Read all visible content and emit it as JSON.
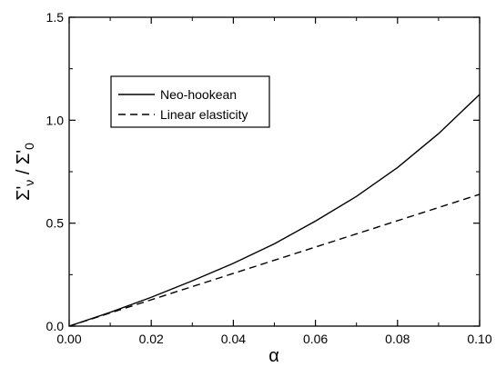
{
  "chart_data": {
    "type": "line",
    "xlabel": "α",
    "ylabel_main": "Σ'",
    "ylabel_sub1": "ν",
    "ylabel_sep": " / ",
    "ylabel_main2": "Σ'",
    "ylabel_sub2": "0",
    "xlim": [
      0,
      0.1
    ],
    "ylim": [
      0,
      1.5
    ],
    "x_ticks": [
      0,
      0.02,
      0.04,
      0.06,
      0.08,
      0.1
    ],
    "x_tick_labels": [
      "0.00",
      "0.02",
      "0.04",
      "0.06",
      "0.08",
      "0.10"
    ],
    "y_ticks": [
      0,
      0.5,
      1.0,
      1.5
    ],
    "y_tick_labels": [
      "0.0",
      "0.5",
      "1.0",
      "1.5"
    ],
    "grid": false,
    "legend_position": "top-left",
    "series": [
      {
        "name": "Neo-hookean",
        "style": "solid",
        "x": [
          0,
          0.01,
          0.02,
          0.03,
          0.04,
          0.05,
          0.06,
          0.07,
          0.08,
          0.09,
          0.1
        ],
        "y": [
          0,
          0.067,
          0.14,
          0.22,
          0.305,
          0.4,
          0.51,
          0.63,
          0.77,
          0.935,
          1.125
        ]
      },
      {
        "name": "Linear elasticity",
        "style": "dashed",
        "x": [
          0,
          0.01,
          0.02,
          0.03,
          0.04,
          0.05,
          0.06,
          0.07,
          0.08,
          0.09,
          0.1
        ],
        "y": [
          0,
          0.064,
          0.128,
          0.192,
          0.256,
          0.32,
          0.384,
          0.448,
          0.512,
          0.576,
          0.64
        ]
      }
    ]
  }
}
